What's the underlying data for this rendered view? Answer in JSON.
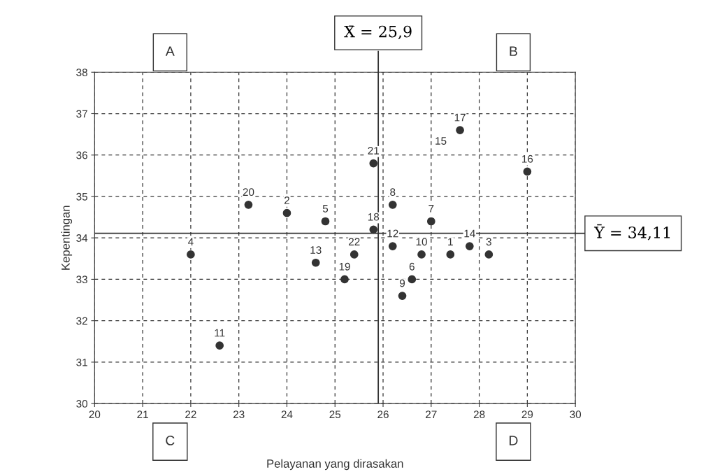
{
  "chart_data": {
    "type": "scatter",
    "xlabel": "Pelayanan yang dirasakan",
    "ylabel": "Kepentingan",
    "xlim": [
      20,
      30
    ],
    "xticks": [
      20,
      21,
      22,
      23,
      24,
      25,
      26,
      27,
      28,
      29,
      30
    ],
    "ylim": [
      30,
      38
    ],
    "yticks": [
      30,
      31,
      32,
      33,
      34,
      35,
      36,
      37,
      38
    ],
    "grid": true,
    "marker": "circle",
    "series": [
      {
        "color": "#333333",
        "x": [
          27.4,
          24.0,
          28.2,
          22.0,
          24.8,
          26.6,
          27.0,
          26.2,
          26.4,
          26.8,
          22.6,
          26.2,
          24.6,
          27.8,
          29.0,
          27.6,
          25.8,
          25.2,
          23.2,
          25.8,
          25.4
        ],
        "values": [
          33.6,
          34.6,
          33.6,
          33.6,
          34.4,
          33.0,
          34.4,
          34.8,
          32.6,
          33.6,
          31.4,
          33.8,
          33.4,
          33.8,
          35.6,
          36.6,
          34.2,
          33.0,
          34.8,
          35.8,
          33.6
        ]
      }
    ],
    "ref_lines": [
      {
        "axis": "x",
        "value": 25.9,
        "label": "X̄ = 25,9",
        "color": "#333333",
        "line_style": "solid"
      },
      {
        "axis": "y",
        "value": 34.11,
        "label": "Ȳ = 34,11",
        "color": "#333333",
        "line_style": "solid"
      }
    ],
    "annotations": [
      {
        "text": "1",
        "x": 27.4,
        "y": 33.6
      },
      {
        "text": "2",
        "x": 24.0,
        "y": 34.6
      },
      {
        "text": "3",
        "x": 28.2,
        "y": 33.6
      },
      {
        "text": "4",
        "x": 22.0,
        "y": 33.6
      },
      {
        "text": "5",
        "x": 24.8,
        "y": 34.4
      },
      {
        "text": "6",
        "x": 26.6,
        "y": 33.0
      },
      {
        "text": "7",
        "x": 27.0,
        "y": 34.4
      },
      {
        "text": "8",
        "x": 26.2,
        "y": 34.8
      },
      {
        "text": "9",
        "x": 26.4,
        "y": 32.6
      },
      {
        "text": "10",
        "x": 26.8,
        "y": 33.6
      },
      {
        "text": "11",
        "x": 22.6,
        "y": 31.4
      },
      {
        "text": "12",
        "x": 26.2,
        "y": 33.8
      },
      {
        "text": "13",
        "x": 24.6,
        "y": 33.4
      },
      {
        "text": "14",
        "x": 27.8,
        "y": 33.8
      },
      {
        "text": "16",
        "x": 29.0,
        "y": 35.6
      },
      {
        "text": "17",
        "x": 27.6,
        "y": 36.6
      },
      {
        "text": "18",
        "x": 25.8,
        "y": 34.2
      },
      {
        "text": "19",
        "x": 25.2,
        "y": 33.0
      },
      {
        "text": "20",
        "x": 23.2,
        "y": 34.8
      },
      {
        "text": "21",
        "x": 25.8,
        "y": 35.8
      },
      {
        "text": "22",
        "x": 25.4,
        "y": 33.6
      },
      "15",
      "A",
      "B",
      "C",
      "D"
    ]
  }
}
